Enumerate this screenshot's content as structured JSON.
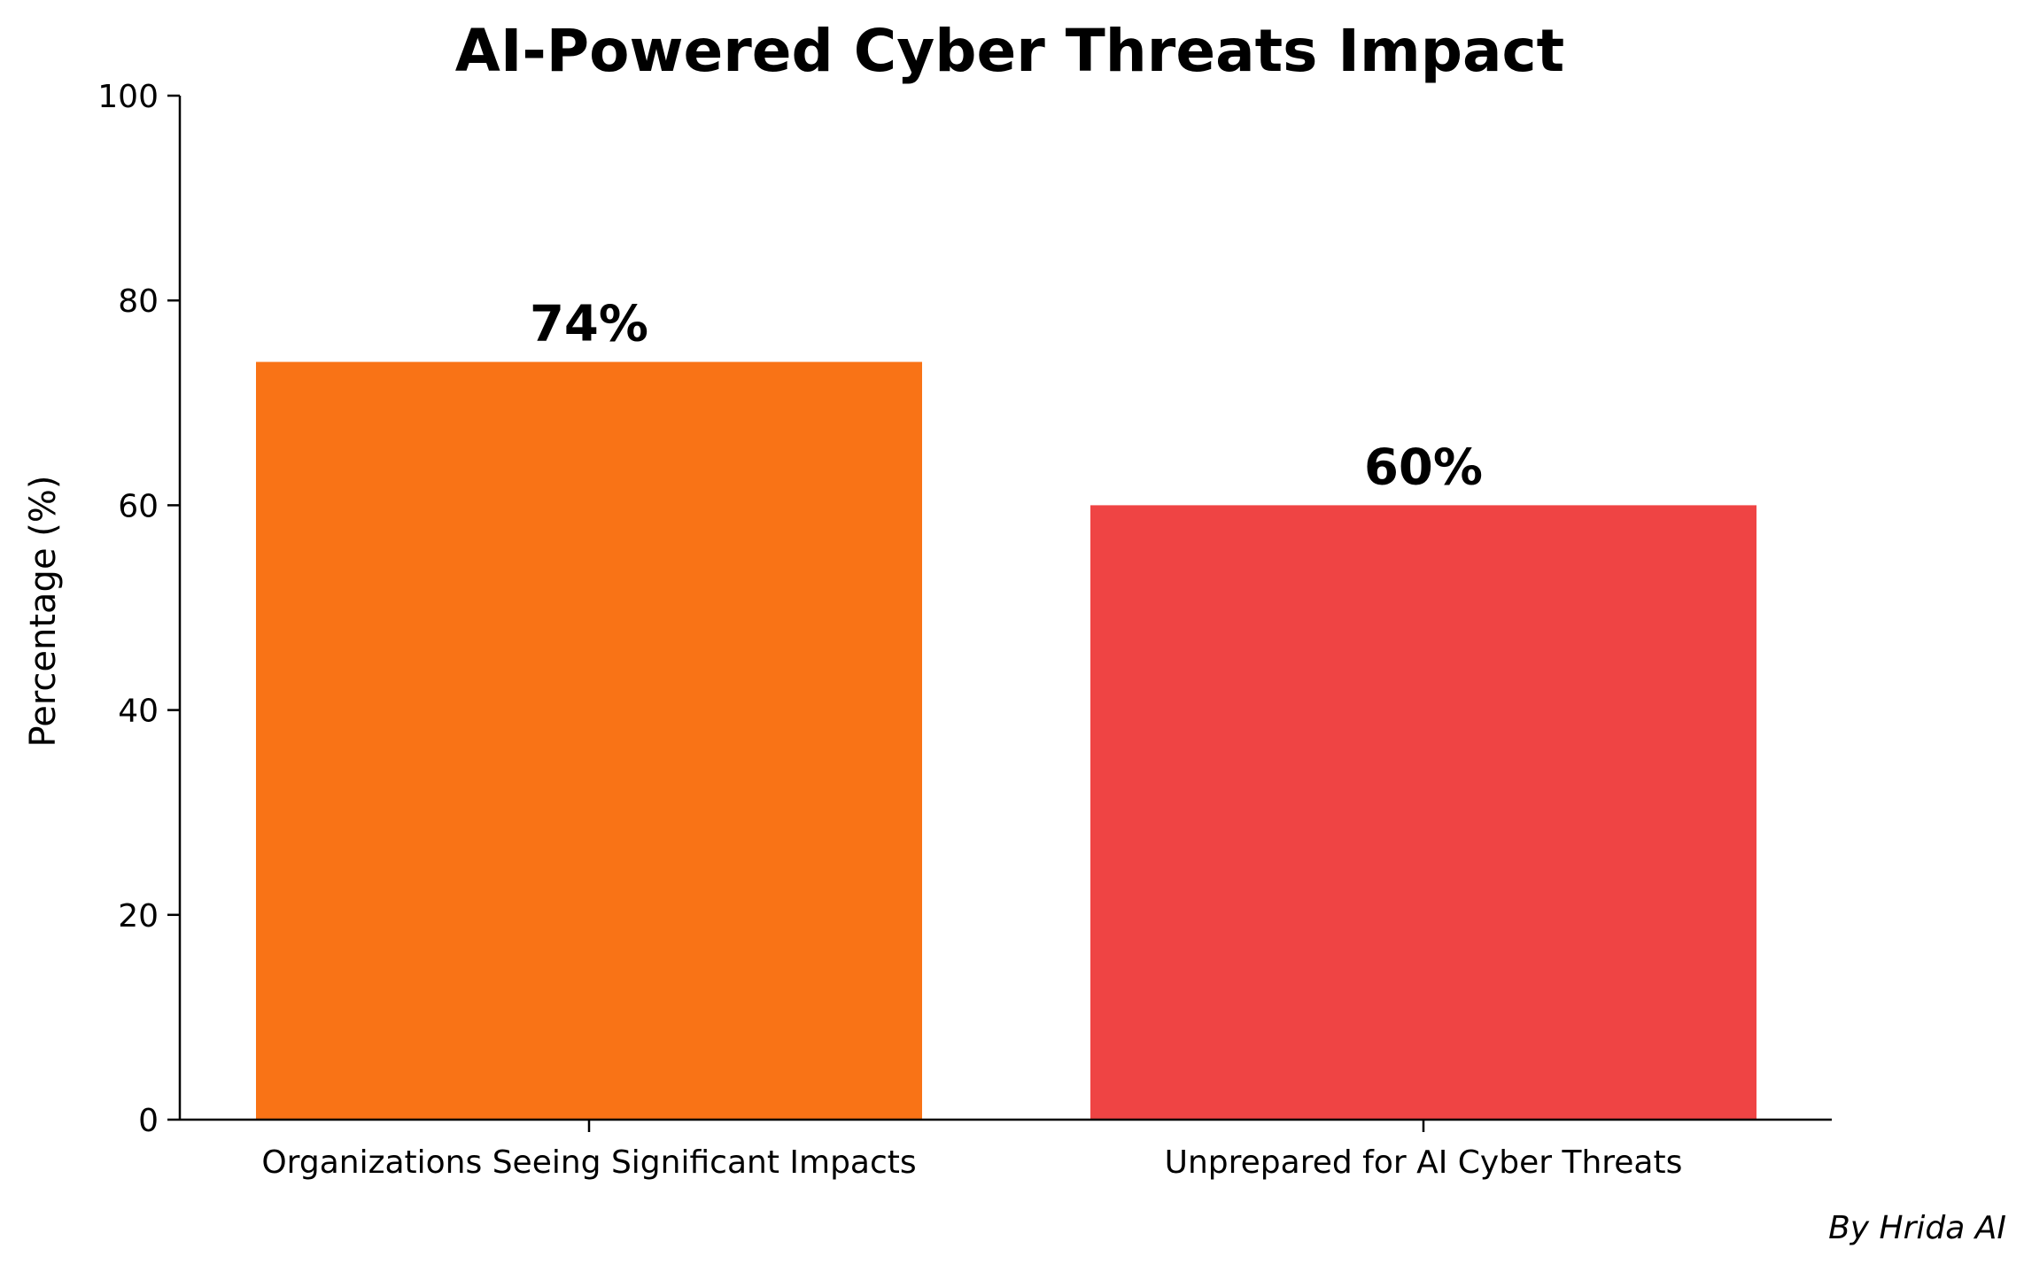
{
  "chart_data": {
    "type": "bar",
    "title": "AI-Powered Cyber Threats Impact",
    "xlabel": "",
    "ylabel": "Percentage (%)",
    "ylim": [
      0,
      100
    ],
    "yticks": [
      0,
      20,
      40,
      60,
      80,
      100
    ],
    "categories": [
      "Organizations Seeing Significant Impacts",
      "Unprepared for AI Cyber Threats"
    ],
    "values": [
      74,
      60
    ],
    "data_labels": [
      "74%",
      "60%"
    ],
    "colors": [
      "#f97316",
      "#ef4444"
    ],
    "grid": false,
    "legend": "none"
  },
  "credit": "By Hrida AI"
}
